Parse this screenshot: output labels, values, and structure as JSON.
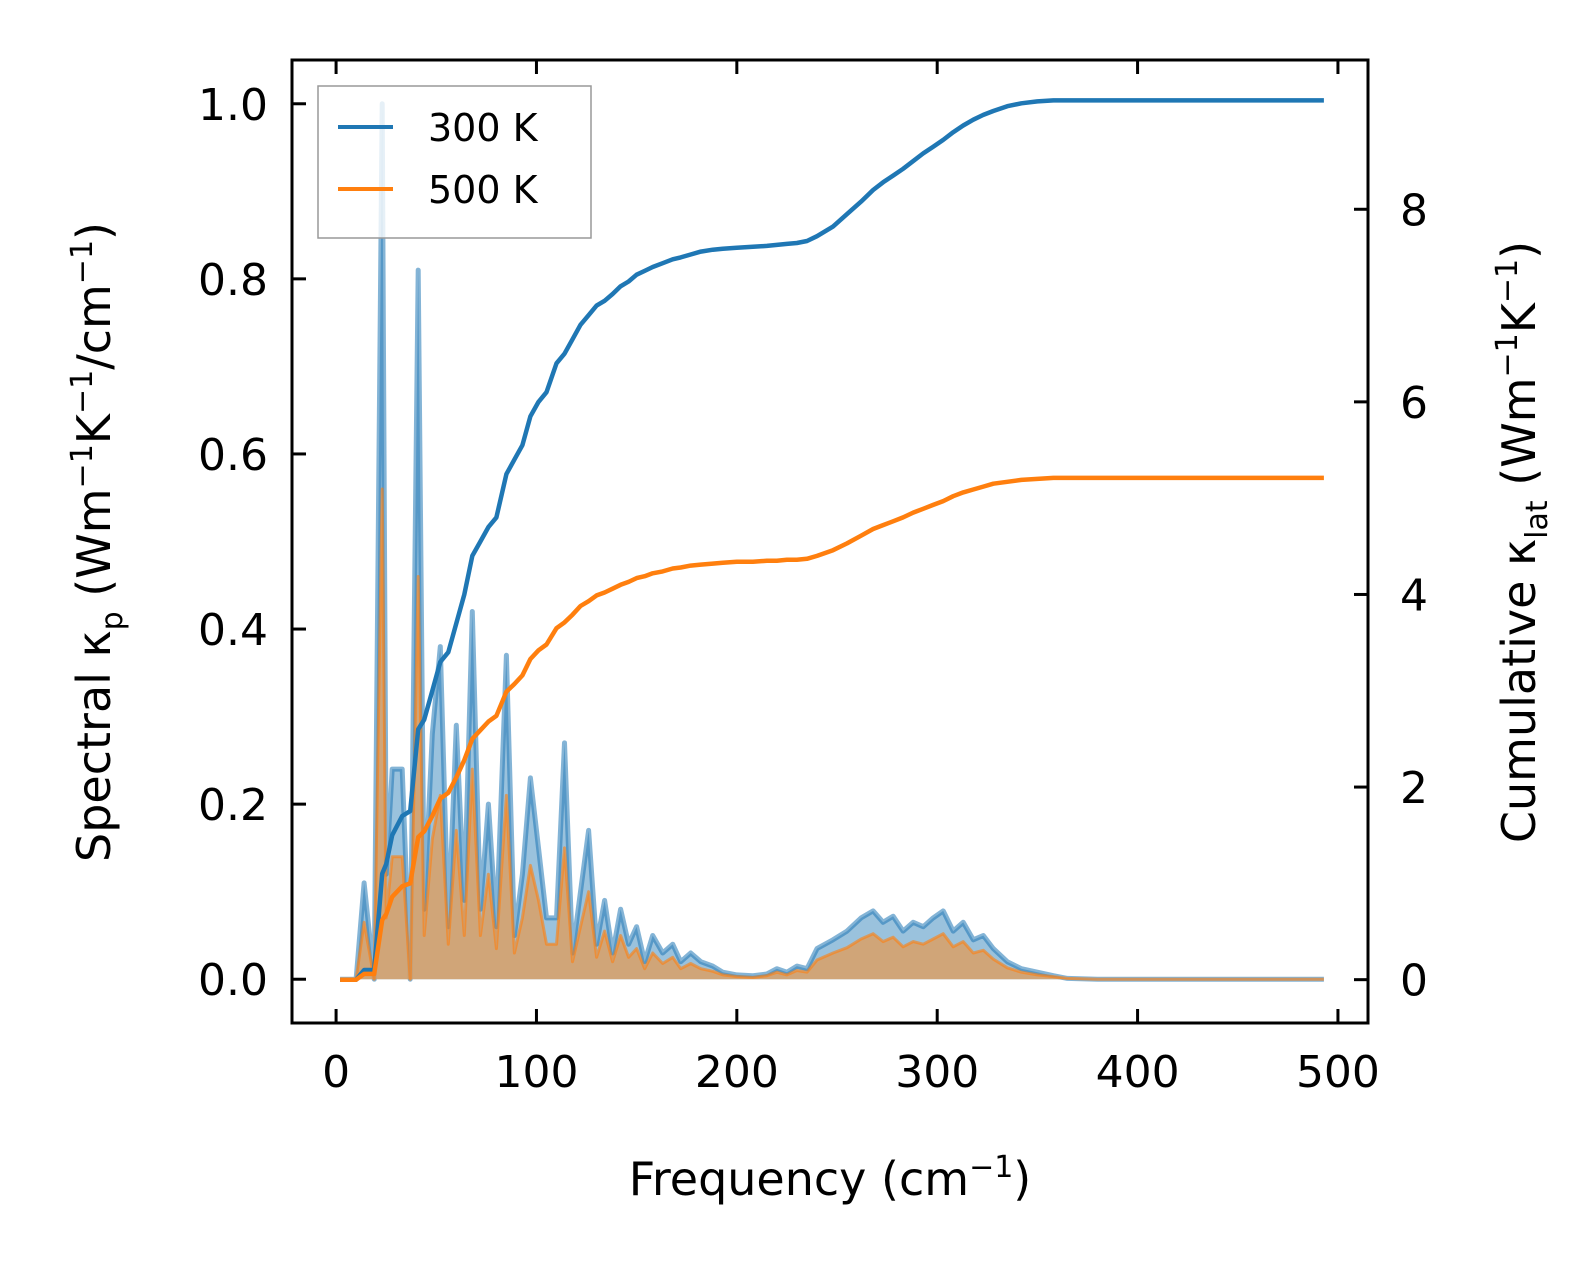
{
  "chart_data": {
    "type": "line",
    "title": "",
    "xlabel": "Frequency (cm",
    "xlabel_sup": "−1",
    "xlabel_tail": ")",
    "ylabel_left": {
      "p1": "Spectral κ",
      "sub": "p",
      "p2": " (Wm",
      "sup1": "−1",
      "p3": "K",
      "sup2": "−1",
      "p4": "/cm",
      "sup3": "−1",
      "p5": ")"
    },
    "ylabel_right": {
      "p1": "Cumulative κ",
      "sub": "lat",
      "p2": " (Wm",
      "sup1": "−1",
      "p3": "K",
      "sup2": "−1",
      "p4": ")"
    },
    "xlim": [
      -22,
      515
    ],
    "ylim_left": [
      -0.05,
      1.05
    ],
    "ylim_right": [
      -0.45,
      9.55
    ],
    "xticks": [
      0,
      100,
      200,
      300,
      400,
      500
    ],
    "xtick_labels": [
      "0",
      "100",
      "200",
      "300",
      "400",
      "500"
    ],
    "yticks_left": [
      0.0,
      0.2,
      0.4,
      0.6,
      0.8,
      1.0
    ],
    "ytick_labels_left": [
      "0.0",
      "0.2",
      "0.4",
      "0.6",
      "0.8",
      "1.0"
    ],
    "yticks_right": [
      0,
      2,
      4,
      6,
      8
    ],
    "ytick_labels_right": [
      "0",
      "2",
      "4",
      "6",
      "8"
    ],
    "legend": {
      "position": "top-left",
      "entries": [
        "300 K",
        "500 K"
      ]
    },
    "colors": {
      "300 K": "#1f77b4",
      "500 K": "#ff7f0e",
      "fill_300": "#1f77b4",
      "fill_500": "#d9a066"
    },
    "spectral": {
      "x": [
        2,
        10,
        14,
        19,
        23,
        25,
        28,
        33,
        37,
        41,
        44,
        48,
        52,
        56,
        60,
        64,
        68,
        72,
        76,
        80,
        85,
        89,
        93,
        97,
        101,
        105,
        110,
        114,
        118,
        122,
        126,
        130,
        134,
        138,
        142,
        146,
        150,
        154,
        158,
        163,
        168,
        172,
        177,
        182,
        188,
        193,
        200,
        208,
        215,
        220,
        225,
        230,
        235,
        240,
        248,
        255,
        262,
        268,
        273,
        278,
        283,
        288,
        293,
        298,
        303,
        308,
        313,
        318,
        323,
        328,
        335,
        342,
        350,
        358,
        365,
        380,
        400,
        450,
        493
      ],
      "values_300K": [
        0,
        0,
        0.11,
        0,
        1.0,
        0.12,
        0.24,
        0.24,
        0,
        0.81,
        0.08,
        0.28,
        0.38,
        0.06,
        0.29,
        0.09,
        0.42,
        0.08,
        0.2,
        0.06,
        0.37,
        0.05,
        0.12,
        0.23,
        0.15,
        0.07,
        0.07,
        0.27,
        0.03,
        0.1,
        0.17,
        0.04,
        0.09,
        0.03,
        0.08,
        0.04,
        0.06,
        0.02,
        0.05,
        0.03,
        0.04,
        0.02,
        0.03,
        0.02,
        0.015,
        0.008,
        0.005,
        0.004,
        0.006,
        0.012,
        0.008,
        0.015,
        0.012,
        0.035,
        0.045,
        0.055,
        0.07,
        0.078,
        0.065,
        0.072,
        0.055,
        0.065,
        0.06,
        0.07,
        0.078,
        0.055,
        0.065,
        0.045,
        0.05,
        0.035,
        0.02,
        0.012,
        0.008,
        0.004,
        0.001,
        0,
        0,
        0,
        0
      ],
      "values_500K": [
        0,
        0,
        0.065,
        0,
        0.56,
        0.07,
        0.14,
        0.14,
        0,
        0.46,
        0.05,
        0.16,
        0.21,
        0.04,
        0.17,
        0.05,
        0.24,
        0.05,
        0.12,
        0.035,
        0.21,
        0.03,
        0.07,
        0.13,
        0.09,
        0.04,
        0.04,
        0.15,
        0.02,
        0.06,
        0.1,
        0.025,
        0.055,
        0.02,
        0.05,
        0.025,
        0.035,
        0.012,
        0.03,
        0.018,
        0.025,
        0.012,
        0.018,
        0.012,
        0.009,
        0.005,
        0.003,
        0.002,
        0.004,
        0.008,
        0.005,
        0.01,
        0.008,
        0.022,
        0.03,
        0.036,
        0.046,
        0.052,
        0.043,
        0.048,
        0.037,
        0.043,
        0.04,
        0.046,
        0.052,
        0.037,
        0.043,
        0.03,
        0.033,
        0.023,
        0.013,
        0.008,
        0.005,
        0.003,
        0.001,
        0,
        0,
        0,
        0
      ]
    },
    "cumulative": {
      "x": [
        2,
        10,
        14,
        19,
        23,
        25,
        28,
        33,
        37,
        41,
        44,
        48,
        52,
        56,
        60,
        64,
        68,
        72,
        76,
        80,
        85,
        89,
        93,
        97,
        101,
        105,
        110,
        114,
        118,
        122,
        126,
        130,
        134,
        138,
        142,
        146,
        150,
        154,
        158,
        163,
        168,
        172,
        177,
        182,
        188,
        193,
        200,
        208,
        215,
        220,
        225,
        230,
        235,
        240,
        248,
        255,
        262,
        268,
        273,
        278,
        283,
        288,
        293,
        298,
        303,
        308,
        313,
        318,
        323,
        328,
        335,
        342,
        350,
        358,
        365,
        380,
        400,
        450,
        493
      ],
      "values_300K": [
        0,
        0,
        0.1,
        0.1,
        1.1,
        1.2,
        1.5,
        1.7,
        1.75,
        2.6,
        2.7,
        3.0,
        3.3,
        3.4,
        3.7,
        4.0,
        4.4,
        4.55,
        4.7,
        4.8,
        5.25,
        5.4,
        5.55,
        5.85,
        6.0,
        6.1,
        6.4,
        6.5,
        6.65,
        6.8,
        6.9,
        7.0,
        7.05,
        7.12,
        7.2,
        7.25,
        7.32,
        7.36,
        7.4,
        7.44,
        7.48,
        7.5,
        7.53,
        7.56,
        7.58,
        7.59,
        7.6,
        7.61,
        7.62,
        7.63,
        7.64,
        7.65,
        7.67,
        7.72,
        7.82,
        7.95,
        8.08,
        8.2,
        8.28,
        8.35,
        8.42,
        8.5,
        8.58,
        8.65,
        8.72,
        8.8,
        8.87,
        8.93,
        8.98,
        9.02,
        9.07,
        9.1,
        9.12,
        9.13,
        9.13,
        9.13,
        9.13,
        9.13,
        9.13
      ],
      "values_500K": [
        0,
        0,
        0.06,
        0.06,
        0.62,
        0.68,
        0.86,
        0.97,
        1.0,
        1.48,
        1.54,
        1.7,
        1.88,
        1.94,
        2.1,
        2.28,
        2.5,
        2.59,
        2.68,
        2.74,
        2.99,
        3.07,
        3.16,
        3.33,
        3.42,
        3.48,
        3.65,
        3.71,
        3.79,
        3.88,
        3.93,
        3.99,
        4.02,
        4.06,
        4.1,
        4.13,
        4.17,
        4.19,
        4.22,
        4.24,
        4.27,
        4.28,
        4.3,
        4.31,
        4.32,
        4.33,
        4.34,
        4.34,
        4.35,
        4.35,
        4.36,
        4.36,
        4.37,
        4.4,
        4.46,
        4.53,
        4.61,
        4.68,
        4.72,
        4.76,
        4.8,
        4.85,
        4.89,
        4.93,
        4.97,
        5.02,
        5.06,
        5.09,
        5.12,
        5.15,
        5.17,
        5.19,
        5.2,
        5.21,
        5.21,
        5.21,
        5.21,
        5.21,
        5.21
      ]
    }
  }
}
